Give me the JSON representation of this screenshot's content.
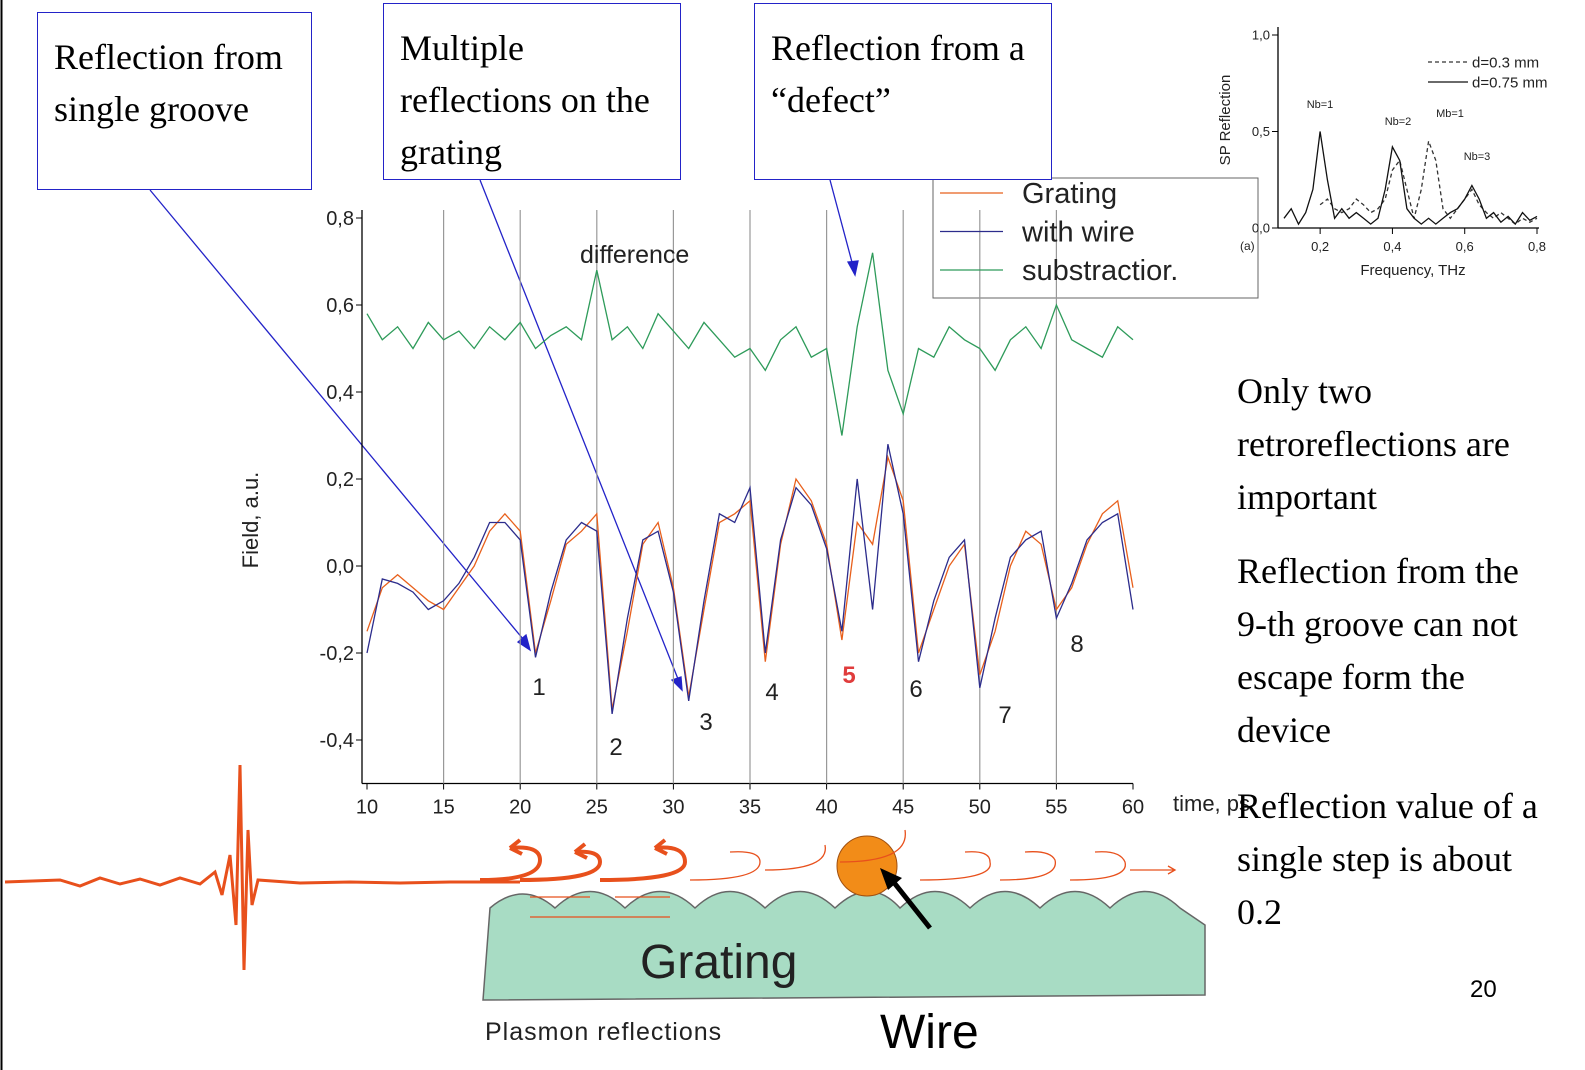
{
  "chart_data": [
    {
      "type": "line",
      "y_label": "Field, a.u.",
      "x_label": "time, ps",
      "annotation": "difference",
      "x": [
        10,
        11,
        12,
        13,
        14,
        15,
        16,
        17,
        18,
        19,
        20,
        21,
        22,
        23,
        24,
        25,
        26,
        27,
        28,
        29,
        30,
        31,
        32,
        33,
        34,
        35,
        36,
        37,
        38,
        39,
        40,
        41,
        42,
        43,
        44,
        45,
        46,
        47,
        48,
        49,
        50,
        51,
        52,
        53,
        54,
        55,
        56,
        57,
        58,
        59,
        60
      ],
      "series": [
        {
          "name": "Grating",
          "color": "#e8601c",
          "values": [
            -0.15,
            -0.05,
            -0.02,
            -0.05,
            -0.08,
            -0.1,
            -0.05,
            0.0,
            0.08,
            0.12,
            0.08,
            -0.2,
            -0.08,
            0.05,
            0.08,
            0.12,
            -0.33,
            -0.15,
            0.05,
            0.1,
            -0.05,
            -0.3,
            -0.1,
            0.1,
            0.12,
            0.15,
            -0.22,
            0.05,
            0.2,
            0.15,
            0.05,
            -0.17,
            0.1,
            0.05,
            0.25,
            0.15,
            -0.2,
            -0.1,
            0.0,
            0.05,
            -0.25,
            -0.15,
            0.0,
            0.08,
            0.05,
            -0.1,
            -0.05,
            0.05,
            0.12,
            0.15,
            -0.05
          ]
        },
        {
          "name": "with wire",
          "color": "#2c2c8c",
          "values": [
            -0.2,
            -0.03,
            -0.04,
            -0.06,
            -0.1,
            -0.08,
            -0.04,
            0.02,
            0.1,
            0.1,
            0.06,
            -0.21,
            -0.06,
            0.06,
            0.1,
            0.08,
            -0.34,
            -0.12,
            0.06,
            0.08,
            -0.06,
            -0.31,
            -0.08,
            0.12,
            0.1,
            0.18,
            -0.2,
            0.06,
            0.18,
            0.14,
            0.04,
            -0.15,
            0.2,
            -0.1,
            0.28,
            0.12,
            -0.22,
            -0.08,
            0.02,
            0.06,
            -0.28,
            -0.12,
            0.02,
            0.06,
            0.08,
            -0.12,
            -0.04,
            0.06,
            0.1,
            0.12,
            -0.1
          ]
        },
        {
          "name": "substractior.",
          "color": "#2e9b5a",
          "values": [
            0.58,
            0.52,
            0.55,
            0.5,
            0.56,
            0.52,
            0.54,
            0.5,
            0.55,
            0.52,
            0.56,
            0.5,
            0.53,
            0.55,
            0.52,
            0.68,
            0.52,
            0.55,
            0.5,
            0.58,
            0.54,
            0.5,
            0.56,
            0.52,
            0.48,
            0.5,
            0.45,
            0.52,
            0.55,
            0.48,
            0.5,
            0.3,
            0.55,
            0.72,
            0.45,
            0.35,
            0.5,
            0.48,
            0.55,
            0.52,
            0.5,
            0.45,
            0.52,
            0.55,
            0.5,
            0.6,
            0.52,
            0.5,
            0.48,
            0.55,
            0.52
          ]
        }
      ],
      "xlim": [
        10,
        60
      ],
      "xticks": [
        10,
        15,
        20,
        25,
        30,
        35,
        40,
        45,
        50,
        55,
        60
      ],
      "ylim": [
        -0.5,
        0.8
      ],
      "yticks": [
        {
          "value": -0.4,
          "label": "-0,4"
        },
        {
          "value": -0.2,
          "label": "-0,2"
        },
        {
          "value": 0,
          "label": "0,0"
        },
        {
          "value": 0.2,
          "label": "0,2"
        },
        {
          "value": 0.4,
          "label": "0,4"
        },
        {
          "value": 0.6,
          "label": "0,6"
        },
        {
          "value": 0.8,
          "label": "0,8"
        }
      ],
      "grid": "x",
      "peak_labels": [
        {
          "text": "1",
          "color": "#222222"
        },
        {
          "text": "2",
          "color": "#222222"
        },
        {
          "text": "3",
          "color": "#222222"
        },
        {
          "text": "4",
          "color": "#222222"
        },
        {
          "text": "5",
          "color": "#e03c3c"
        },
        {
          "text": "6",
          "color": "#222222"
        },
        {
          "text": "7",
          "color": "#222222"
        },
        {
          "text": "8",
          "color": "#222222"
        }
      ]
    },
    {
      "type": "line",
      "y_label": "SP Reflection",
      "x_label": "Frequency, THz",
      "panel_label": "(a)",
      "peak_labels": [
        "Nb=1",
        "Nb=2",
        "Mb=1",
        "Nb=3"
      ],
      "x": [
        0.1,
        0.12,
        0.14,
        0.16,
        0.18,
        0.2,
        0.22,
        0.24,
        0.26,
        0.28,
        0.3,
        0.32,
        0.34,
        0.36,
        0.38,
        0.4,
        0.42,
        0.44,
        0.46,
        0.48,
        0.5,
        0.52,
        0.54,
        0.56,
        0.58,
        0.6,
        0.62,
        0.64,
        0.66,
        0.68,
        0.7,
        0.72,
        0.74,
        0.76,
        0.78,
        0.8
      ],
      "series": [
        {
          "name": "d=0.3 mm",
          "color": "#333333",
          "dash": true,
          "values": [
            null,
            null,
            null,
            null,
            null,
            0.12,
            0.15,
            0.1,
            0.08,
            0.1,
            0.15,
            0.12,
            0.08,
            0.1,
            0.15,
            0.3,
            0.35,
            0.2,
            0.05,
            0.2,
            0.45,
            0.35,
            0.1,
            0.05,
            0.1,
            0.15,
            0.2,
            0.12,
            0.08,
            0.05,
            0.08,
            0.05,
            0.02,
            0.05,
            0.03,
            0.05
          ]
        },
        {
          "name": "d=0.75 mm",
          "color": "#111111",
          "dash": false,
          "values": [
            0.05,
            0.1,
            0.02,
            0.08,
            0.2,
            0.5,
            0.25,
            0.05,
            0.1,
            0.05,
            0.08,
            0.05,
            0.02,
            0.05,
            0.2,
            0.42,
            0.35,
            0.1,
            0.05,
            0.02,
            0.05,
            0.02,
            0.05,
            0.08,
            0.1,
            0.15,
            0.22,
            0.15,
            0.05,
            0.08,
            0.03,
            0.06,
            0.02,
            0.08,
            0.04,
            0.06
          ]
        }
      ],
      "xlim": [
        0.1,
        0.8
      ],
      "xticks": [
        {
          "value": 0.2,
          "label": "0,2"
        },
        {
          "value": 0.4,
          "label": "0,4"
        },
        {
          "value": 0.6,
          "label": "0,6"
        },
        {
          "value": 0.8,
          "label": "0,8"
        }
      ],
      "ylim": [
        0,
        1
      ],
      "yticks": [
        {
          "value": 0,
          "label": "0,0"
        },
        {
          "value": 0.5,
          "label": "0,5"
        },
        {
          "value": 1,
          "label": "1,0"
        }
      ]
    }
  ],
  "callouts": [
    "Reflection from single groove",
    "Multiple reflections on the grating",
    "Reflection from a “defect”"
  ],
  "notes": [
    "Only two retroreflections are important",
    "Reflection from the 9-th groove can not escape form the device",
    "Reflection value of a single step is about 0.2"
  ],
  "diagram": {
    "grating": "Grating",
    "wire": "Wire",
    "caption": "Plasmon reflections"
  },
  "page_number": "20"
}
